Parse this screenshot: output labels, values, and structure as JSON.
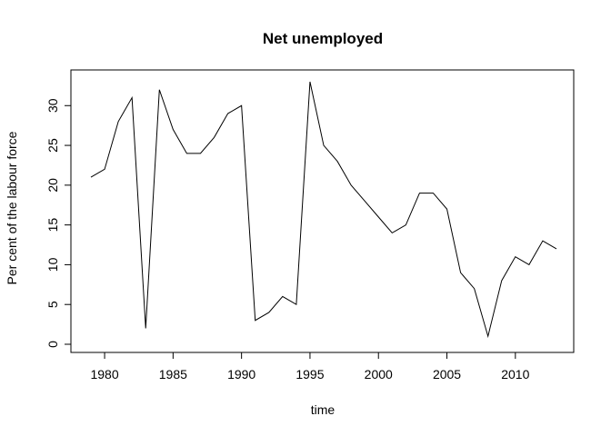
{
  "chart_data": {
    "type": "line",
    "title": "Net unemployed",
    "xlabel": "time",
    "ylabel": "Per cent of the labour force",
    "xlim": [
      1979,
      2013
    ],
    "ylim": [
      0,
      33
    ],
    "grid": false,
    "x_ticks": [
      1980,
      1985,
      1990,
      1995,
      2000,
      2005,
      2010
    ],
    "y_ticks": [
      0,
      5,
      10,
      15,
      20,
      25,
      30
    ],
    "x_tick_labels": [
      "1980",
      "1985",
      "1990",
      "1995",
      "2000",
      "2005",
      "2010"
    ],
    "y_tick_labels": [
      "0",
      "5",
      "10",
      "15",
      "20",
      "25",
      "30"
    ],
    "series": [
      {
        "color": "#000000",
        "x": [
          1979,
          1980,
          1981,
          1982,
          1983,
          1984,
          1985,
          1986,
          1987,
          1988,
          1989,
          1990,
          1991,
          1992,
          1993,
          1994,
          1995,
          1996,
          1997,
          1998,
          1999,
          2000,
          2001,
          2002,
          2003,
          2004,
          2005,
          2006,
          2007,
          2008,
          2009,
          2010,
          2011,
          2012,
          2013
        ],
        "values": [
          21,
          22,
          28,
          31,
          2,
          32,
          27,
          24,
          24,
          26,
          29,
          30,
          3,
          4,
          6,
          5,
          33,
          25,
          23,
          20,
          18,
          16,
          14,
          15,
          19,
          19,
          17,
          9,
          7,
          1,
          8,
          11,
          10,
          13,
          12
        ]
      }
    ]
  }
}
